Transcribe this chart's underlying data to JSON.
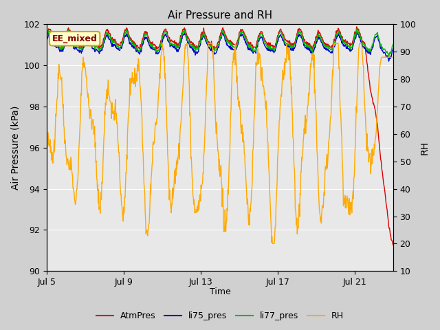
{
  "title": "Air Pressure and RH",
  "xlabel": "Time",
  "ylabel_left": "Air Pressure (kPa)",
  "ylabel_right": "RH",
  "ylim_left": [
    90,
    102
  ],
  "ylim_right": [
    10,
    100
  ],
  "yticks_left": [
    90,
    92,
    94,
    96,
    98,
    100,
    102
  ],
  "yticks_right": [
    10,
    20,
    30,
    40,
    50,
    60,
    70,
    80,
    90,
    100
  ],
  "xtick_labels": [
    "Jul 5",
    "Jul 9",
    "Jul 13",
    "Jul 17",
    "Jul 21"
  ],
  "xtick_pos": [
    0,
    4,
    8,
    12,
    16
  ],
  "xlim": [
    0,
    18
  ],
  "fig_bg_color": "#d0d0d0",
  "plot_bg_color": "#e8e8e8",
  "grid_color": "#ffffff",
  "atm_color": "#dd0000",
  "li75_color": "#0000cc",
  "li77_color": "#00bb00",
  "rh_color": "#ffaa00",
  "legend_labels": [
    "AtmPres",
    "li75_pres",
    "li77_pres",
    "RH"
  ],
  "annotation_text": "EE_mixed",
  "annotation_box_color": "#ffffcc",
  "annotation_box_edge": "#ccaa00",
  "title_fontsize": 11,
  "axis_fontsize": 10,
  "tick_fontsize": 9,
  "legend_fontsize": 9
}
